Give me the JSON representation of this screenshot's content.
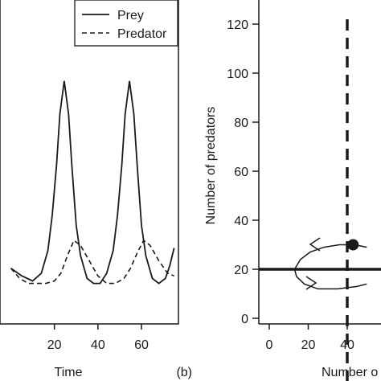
{
  "chart_data": [
    {
      "panel": "a",
      "type": "line",
      "xlabel": "Time",
      "ylabel": "",
      "xlim": [
        -5,
        77
      ],
      "ylim": [
        -3,
        125
      ],
      "x_ticks": [
        20,
        40,
        60
      ],
      "legend": {
        "placement": "top-right",
        "entries": [
          {
            "name": "Prey",
            "style": "solid"
          },
          {
            "name": "Predator",
            "style": "dashed"
          }
        ]
      },
      "series": [
        {
          "name": "Prey",
          "style": "solid",
          "x": [
            0,
            5,
            10,
            14,
            17,
            19,
            21,
            22.5,
            24.5,
            26.5,
            28,
            30,
            32,
            35,
            38,
            41,
            44,
            47,
            49,
            51,
            52.5,
            54.5,
            56.5,
            58,
            60,
            62,
            65,
            68,
            71,
            73,
            75
          ],
          "y": [
            19,
            16,
            14,
            17,
            26,
            40,
            60,
            80,
            93,
            80,
            60,
            36,
            24,
            15,
            13,
            13,
            17,
            26,
            40,
            60,
            80,
            93,
            80,
            60,
            36,
            24,
            15,
            13,
            15,
            20,
            27
          ]
        },
        {
          "name": "Predator",
          "style": "dashed",
          "x": [
            0,
            4,
            8,
            12,
            16,
            20,
            23,
            26,
            29,
            32,
            36,
            40,
            44,
            48,
            52,
            55,
            58,
            61,
            64,
            68,
            72,
            75
          ],
          "y": [
            19,
            15,
            13,
            13,
            13,
            14,
            17,
            24,
            30,
            28,
            22,
            16,
            13,
            13,
            15,
            19,
            25,
            30,
            28,
            22,
            17,
            16
          ]
        }
      ]
    },
    {
      "panel": "b",
      "panel_label": "(b)",
      "type": "line",
      "xlabel": "Number o",
      "ylabel": "Number of predators",
      "xlim": [
        -5,
        45
      ],
      "ylim": [
        -3,
        125
      ],
      "x_ticks": [
        0,
        20,
        40
      ],
      "y_ticks": [
        0,
        20,
        40,
        60,
        80,
        100,
        120
      ],
      "lines": [
        {
          "orientation": "horizontal",
          "style": "solid-thick",
          "y": 20
        },
        {
          "orientation": "vertical",
          "style": "dashed-thick",
          "x": 40
        }
      ],
      "equilibrium_point": {
        "x": 43,
        "y": 30
      },
      "orbit": {
        "x": [
          50,
          44,
          36,
          28,
          21,
          16,
          13,
          14,
          18,
          25,
          35,
          45,
          50
        ],
        "y": [
          29,
          30,
          30,
          29,
          27,
          24,
          20,
          17,
          14,
          12,
          12,
          13,
          14
        ]
      }
    }
  ]
}
